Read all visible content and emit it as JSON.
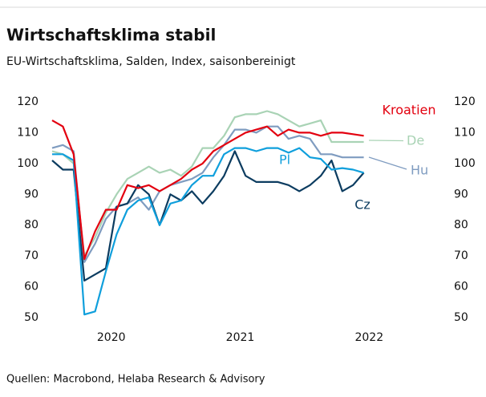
{
  "chart_data": {
    "type": "line",
    "title": "Wirtschaftsklima stabil",
    "subtitle": "EU-Wirtschaftsklima, Salden, Index, saisonbereinigt",
    "source": "Quellen: Macrobond, Helaba Research & Advisory",
    "categories": [
      null,
      null,
      null,
      null,
      null,
      null,
      "2020",
      null,
      null,
      null,
      null,
      null,
      null,
      null,
      null,
      null,
      null,
      null,
      "2021",
      null,
      null,
      null,
      null,
      null,
      null,
      null,
      null,
      null,
      null,
      null,
      "2022"
    ],
    "series": [
      {
        "name": "Kroatien",
        "color": "#e3000f",
        "values": [
          114,
          112,
          103,
          69,
          78,
          85,
          85,
          93,
          92,
          93,
          91,
          93,
          95,
          98,
          100,
          104,
          106,
          108,
          110,
          111,
          112,
          109,
          111,
          110,
          110,
          109,
          110,
          110,
          109.5,
          109,
          null
        ]
      },
      {
        "name": "De",
        "color": "#a9d3b5",
        "values": [
          104,
          103,
          100,
          70,
          76,
          84,
          90,
          95,
          97,
          99,
          97,
          98,
          96,
          99,
          105,
          105,
          109,
          115,
          116,
          116,
          117,
          116,
          114,
          112,
          113,
          114,
          107,
          107,
          107,
          107,
          null
        ]
      },
      {
        "name": "Hu",
        "color": "#7f9cc0",
        "values": [
          105,
          106,
          104,
          68,
          74,
          82,
          86,
          87,
          89,
          85,
          91,
          93,
          94,
          95,
          97,
          102,
          106,
          111,
          111,
          110,
          112,
          112,
          108,
          109,
          108,
          103,
          103,
          102,
          102,
          102,
          null
        ]
      },
      {
        "name": "Pl",
        "color": "#0f9fdc",
        "values": [
          103,
          103,
          101,
          51,
          52,
          65,
          77,
          85,
          88,
          89,
          80,
          87,
          88,
          93,
          96,
          96,
          103,
          105,
          105,
          104,
          105,
          105,
          103.5,
          105,
          102,
          101.5,
          98,
          98.5,
          98,
          97,
          null
        ]
      },
      {
        "name": "Cz",
        "color": "#0c3c60",
        "values": [
          101,
          98,
          98,
          62,
          64,
          66,
          86,
          87,
          93,
          90,
          80,
          90,
          88,
          91,
          87,
          91,
          96,
          104,
          96,
          94,
          94,
          94,
          93,
          91,
          93,
          96,
          101,
          91,
          93,
          97,
          null
        ]
      }
    ],
    "ylim": [
      50,
      120
    ],
    "yticks": [
      50,
      60,
      70,
      80,
      90,
      100,
      110,
      120
    ],
    "y2lim": [
      50,
      120
    ],
    "y2ticks": [
      50,
      60,
      70,
      80,
      90,
      100,
      110,
      120
    ]
  }
}
